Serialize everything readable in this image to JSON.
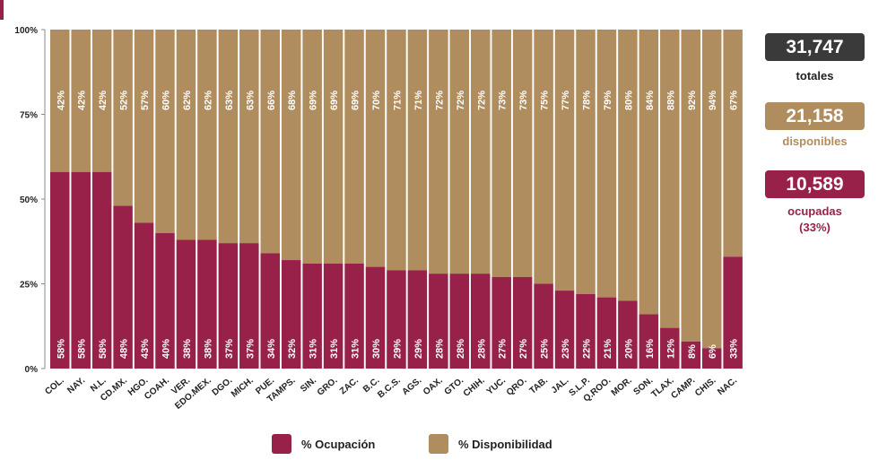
{
  "chart_data": {
    "type": "bar",
    "stacked": true,
    "categories": [
      "COL.",
      "NAY.",
      "N.L.",
      "CD.MX.",
      "HGO.",
      "COAH.",
      "VER.",
      "EDO.MEX.",
      "DGO.",
      "MICH.",
      "PUE.",
      "TAMPS.",
      "SIN.",
      "GRO.",
      "ZAC.",
      "B.C.",
      "B.C.S.",
      "AGS.",
      "OAX.",
      "GTO.",
      "CHIH.",
      "YUC.",
      "QRO.",
      "TAB.",
      "JAL.",
      "S.L.P.",
      "Q.ROO.",
      "MOR.",
      "SON.",
      "TLAX.",
      "CAMP.",
      "CHIS.",
      "NAC."
    ],
    "series": [
      {
        "name": "% Ocupación",
        "values": [
          58,
          58,
          58,
          48,
          43,
          40,
          38,
          38,
          37,
          37,
          34,
          32,
          31,
          31,
          31,
          30,
          29,
          29,
          28,
          28,
          28,
          27,
          27,
          25,
          23,
          22,
          21,
          20,
          16,
          12,
          8,
          6,
          33
        ],
        "labels": [
          "58%",
          "58%",
          "58%",
          "48%",
          "43%",
          "40%",
          "38%",
          "38%",
          "37%",
          "37%",
          "34%",
          "32%",
          "31%",
          "31%",
          "31%",
          "30%",
          "29%",
          "29%",
          "28%",
          "28%",
          "28%",
          "27%",
          "27%",
          "25%",
          "23%",
          "22%",
          "21%",
          "20%",
          "16%",
          "12%",
          "8%",
          "6%",
          "33%"
        ]
      },
      {
        "name": "% Disponibilidad",
        "values": [
          42,
          42,
          42,
          52,
          57,
          60,
          62,
          62,
          63,
          63,
          66,
          68,
          69,
          69,
          69,
          70,
          71,
          71,
          72,
          72,
          72,
          73,
          73,
          75,
          77,
          78,
          79,
          80,
          84,
          88,
          92,
          94,
          67
        ],
        "labels": [
          "42%",
          "42%",
          "42%",
          "52%",
          "57%",
          "60%",
          "62%",
          "62%",
          "63%",
          "63%",
          "66%",
          "68%",
          "69%",
          "69%",
          "69%",
          "70%",
          "71%",
          "71%",
          "72%",
          "72%",
          "72%",
          "73%",
          "73%",
          "75%",
          "77%",
          "78%",
          "79%",
          "80%",
          "84%",
          "88%",
          "92%",
          "94%",
          "67%"
        ]
      }
    ],
    "y_ticks": [
      "0%",
      "25%",
      "50%",
      "75%",
      "100%"
    ],
    "y_tick_values": [
      0,
      25,
      50,
      75,
      100
    ],
    "ylim": [
      0,
      100
    ],
    "grid": false,
    "legend_position": "bottom"
  },
  "colors": {
    "occupied": "#98214a",
    "available": "#b08d5e",
    "totals_box": "#3a3a3a",
    "axis": "#888888",
    "text": "#222222"
  },
  "kpis": {
    "totals": {
      "value": "31,747",
      "label": "totales"
    },
    "available": {
      "value": "21,158",
      "label": "disponibles"
    },
    "occupied": {
      "value": "10,589",
      "label": "ocupadas",
      "percent": "(33%)"
    }
  }
}
